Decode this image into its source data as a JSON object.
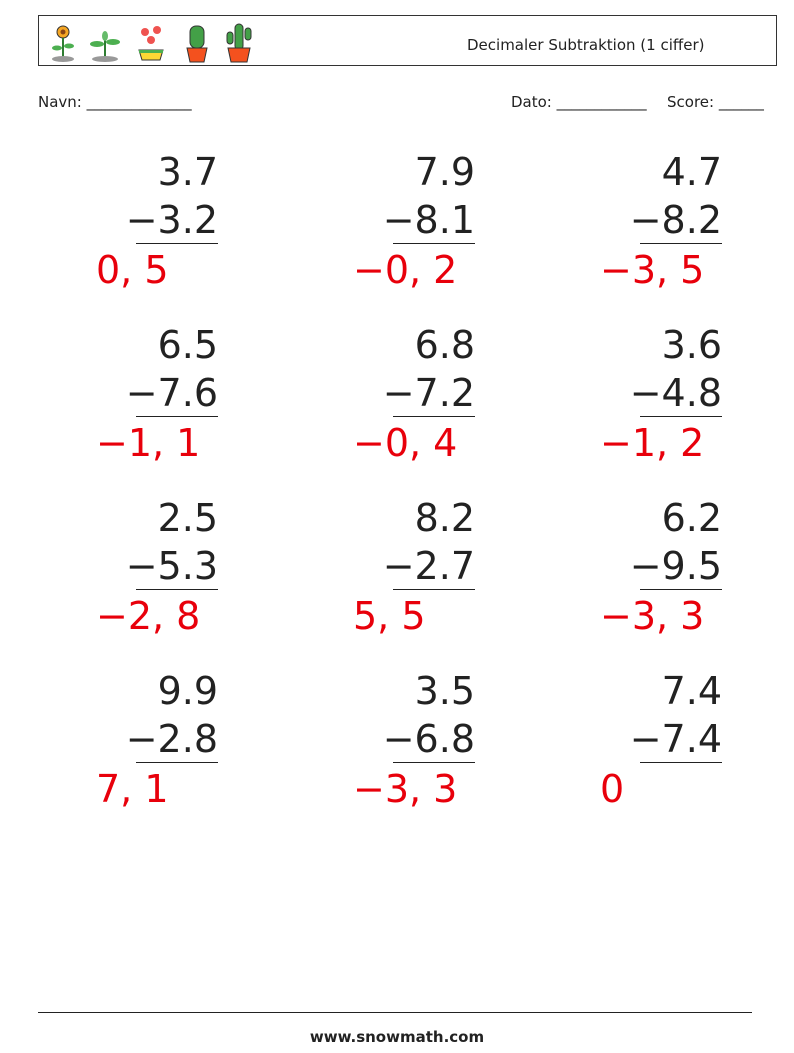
{
  "header": {
    "title": "Decimaler Subtraktion (1 ciffer)"
  },
  "fields": {
    "name": "Navn: ______________",
    "date": "Dato: ____________",
    "score": "Score: ______"
  },
  "problems": [
    {
      "top": "3.7",
      "bottom": "−3.2",
      "answer": "0, 5"
    },
    {
      "top": "7.9",
      "bottom": "−8.1",
      "answer": "−0, 2"
    },
    {
      "top": "4.7",
      "bottom": "−8.2",
      "answer": "−3, 5"
    },
    {
      "top": "6.5",
      "bottom": "−7.6",
      "answer": "−1, 1"
    },
    {
      "top": "6.8",
      "bottom": "−7.2",
      "answer": "−0, 4"
    },
    {
      "top": "3.6",
      "bottom": "−4.8",
      "answer": "−1, 2"
    },
    {
      "top": "2.5",
      "bottom": "−5.3",
      "answer": "−2, 8"
    },
    {
      "top": "8.2",
      "bottom": "−2.7",
      "answer": "5, 5"
    },
    {
      "top": "6.2",
      "bottom": "−9.5",
      "answer": "−3, 3"
    },
    {
      "top": "9.9",
      "bottom": "−2.8",
      "answer": "7, 1"
    },
    {
      "top": "3.5",
      "bottom": "−6.8",
      "answer": "−3, 3"
    },
    {
      "top": "7.4",
      "bottom": "−7.4",
      "answer": "0"
    }
  ],
  "footer": {
    "url": "www.snowmath.com"
  }
}
